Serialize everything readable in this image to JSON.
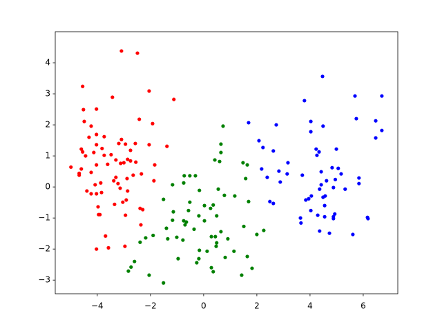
{
  "chart_data": {
    "type": "scatter",
    "xlim": [
      -5.58,
      7.3
    ],
    "ylim": [
      -3.44,
      5.0
    ],
    "xticks": [
      {
        "value": -4,
        "label": "−4"
      },
      {
        "value": -2,
        "label": "−2"
      },
      0,
      2,
      4,
      6
    ],
    "yticks": [
      {
        "value": -3,
        "label": "−3"
      },
      {
        "value": -2,
        "label": "−2"
      },
      {
        "value": -1,
        "label": "−1"
      },
      0,
      1,
      2,
      3,
      4
    ],
    "grid": false,
    "series": [
      {
        "color": "#ff0000",
        "x": [
          -3.09,
          -2.49,
          -4.55,
          -2.05,
          -3.43,
          -1.12,
          -4.52,
          -4.03,
          -2.42,
          -4.49,
          -1.92,
          -4.23,
          -4.03,
          -4.31,
          -3.74,
          -3.09,
          -3.19,
          -2.94,
          -2.57,
          -2.05,
          -1.38,
          -4.03,
          -4.6,
          -3.82,
          -4.55,
          -4.13,
          -2.75,
          -4.44,
          -3.74,
          -3.48,
          -3.3,
          -3.12,
          -3.0,
          -2.86,
          -2.75,
          -2.55,
          -4.03,
          -3.61,
          -1.84,
          -4.99,
          -4.6,
          -4.68,
          -4.68,
          -4.23,
          -2.65,
          -2.34,
          -3.3,
          -2.88,
          -3.38,
          -1.87,
          -3.87,
          -4.08,
          -3.22,
          -3.14,
          -4.39,
          -3.84,
          -4.23,
          -4.03,
          -2.86,
          -3.04,
          -2.91,
          -3.35,
          -3.97,
          -2.39,
          -2.29,
          -3.95,
          -3.9,
          -2.94,
          -2.36,
          -3.69,
          -4.03,
          -3.58,
          -2.96
        ],
        "values": [
          4.38,
          4.31,
          3.24,
          3.09,
          2.89,
          2.82,
          2.49,
          2.51,
          2.18,
          2.11,
          2.04,
          1.96,
          1.69,
          1.6,
          1.62,
          1.53,
          1.4,
          1.38,
          1.4,
          1.36,
          1.31,
          1.36,
          1.22,
          1.24,
          1.13,
          1.11,
          1.18,
          1.0,
          1.02,
          1.04,
          0.87,
          0.76,
          0.78,
          0.89,
          0.84,
          0.8,
          0.71,
          0.73,
          0.71,
          0.64,
          0.58,
          0.44,
          0.38,
          0.47,
          0.38,
          0.42,
          0.31,
          0.27,
          0.2,
          0.2,
          0.13,
          0.07,
          0.11,
          -0.04,
          -0.13,
          -0.18,
          -0.22,
          -0.22,
          -0.13,
          -0.49,
          -0.42,
          -0.56,
          -0.64,
          -0.69,
          -0.73,
          -0.89,
          -0.89,
          -0.91,
          -1.22,
          -1.58,
          -2.0,
          -1.96,
          -1.91
        ]
      },
      {
        "color": "#008000",
        "x": [
          0.73,
          0.65,
          0.65,
          0.42,
          0.6,
          1.48,
          1.64,
          1.58,
          -0.73,
          -0.52,
          -0.31,
          -0.75,
          -1.17,
          -0.16,
          0.55,
          0.78,
          1.17,
          -1.51,
          -0.52,
          0.03,
          0.36,
          0.26,
          1.69,
          -1.14,
          -0.57,
          -0.18,
          -1.17,
          -0.75,
          -0.65,
          -0.7,
          0.03,
          0.49,
          -1.4,
          -0.36,
          1.51,
          2.26,
          0.65,
          0.29,
          0.44,
          0.91,
          -2.18,
          -1.9,
          -1.35,
          -1.01,
          -0.78,
          0.49,
          -2.39,
          0.47,
          2.0,
          -0.16,
          0.13,
          1.14,
          -0.96,
          -0.18,
          -0.26,
          0.81,
          1.64,
          -2.6,
          -2.73,
          -2.83,
          0.29,
          0.36,
          1.82,
          -2.05,
          1.43,
          -1.51
        ],
        "values": [
          1.96,
          1.38,
          1.11,
          0.87,
          0.82,
          0.78,
          0.71,
          0.27,
          0.36,
          0.36,
          0.36,
          0.13,
          0.07,
          -0.11,
          -0.07,
          -0.27,
          -0.29,
          -0.4,
          -0.49,
          -0.6,
          -0.58,
          -0.69,
          -0.47,
          -0.8,
          -0.76,
          -0.93,
          -1.07,
          -1.09,
          -1.13,
          -1.22,
          -1.09,
          -0.93,
          -1.33,
          -1.36,
          -1.27,
          -1.4,
          -1.44,
          -1.6,
          -1.6,
          -1.67,
          -1.64,
          -1.56,
          -1.67,
          -1.62,
          -1.71,
          -1.8,
          -1.78,
          -1.91,
          -1.53,
          -2.04,
          -2.07,
          -2.07,
          -2.31,
          -2.31,
          -2.44,
          -2.27,
          -2.24,
          -2.4,
          -2.58,
          -2.71,
          -2.6,
          -2.73,
          -2.62,
          -2.84,
          -2.84,
          -3.09
        ]
      },
      {
        "color": "#0000ff",
        "x": [
          4.47,
          5.69,
          6.7,
          3.79,
          4.03,
          5.74,
          6.47,
          1.69,
          2.73,
          4.49,
          6.7,
          4.03,
          6.47,
          2.08,
          2.23,
          4.23,
          4.99,
          2.62,
          4.34,
          4.26,
          3.17,
          4.42,
          2.18,
          2.83,
          3.14,
          3.71,
          4.83,
          5.06,
          5.17,
          2.39,
          4.62,
          4.95,
          2.88,
          5.84,
          5.84,
          4.42,
          4.88,
          4.36,
          5.32,
          4.05,
          4.57,
          4.49,
          3.95,
          3.84,
          2.49,
          2.62,
          4.55,
          4.03,
          4.93,
          4.29,
          4.55,
          4.88,
          4.88,
          3.64,
          6.16,
          6.18,
          3.66,
          4.36,
          4.73,
          5.61
        ],
        "values": [
          3.56,
          2.93,
          2.93,
          2.78,
          2.11,
          2.2,
          2.13,
          2.07,
          2.0,
          1.96,
          1.82,
          1.78,
          1.58,
          1.49,
          1.27,
          1.22,
          1.22,
          1.16,
          1.13,
          1.02,
          0.78,
          0.49,
          0.58,
          0.51,
          0.42,
          0.38,
          0.62,
          0.6,
          0.42,
          0.31,
          0.2,
          0.24,
          0.16,
          0.29,
          0.11,
          0.07,
          -0.02,
          -0.07,
          -0.07,
          -0.29,
          -0.29,
          -0.33,
          -0.38,
          -0.42,
          -0.47,
          -0.53,
          -0.6,
          -0.76,
          -0.87,
          -0.91,
          -0.96,
          -0.96,
          -1.02,
          -1.0,
          -0.98,
          -1.02,
          -1.16,
          -1.42,
          -1.49,
          -1.53
        ]
      }
    ]
  }
}
